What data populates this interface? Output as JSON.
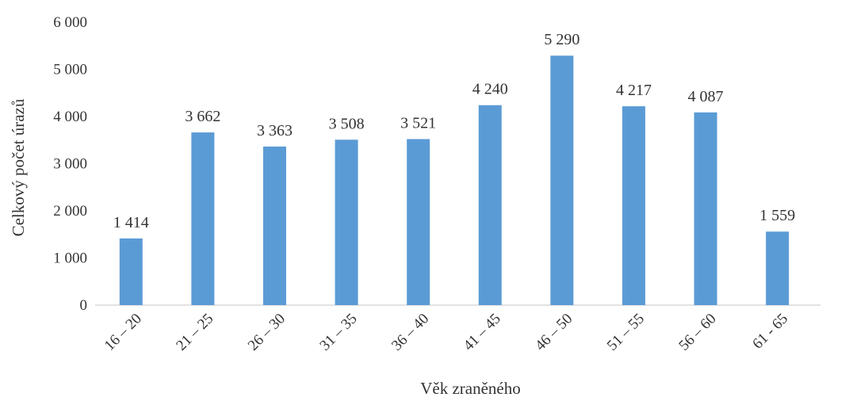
{
  "chart_data": {
    "type": "bar",
    "title": "",
    "xlabel": "Věk zraněného",
    "ylabel": "Celkový počet úrazů",
    "categories": [
      "16 – 20",
      "21 – 25",
      "26 – 30",
      "31 – 35",
      "36 – 40",
      "41 – 45",
      "46 – 50",
      "51 – 55",
      "56 – 60",
      "61 - 65"
    ],
    "values": [
      1414,
      3662,
      3363,
      3508,
      3521,
      4240,
      5290,
      4217,
      4087,
      1559
    ],
    "data_labels": [
      "1 414",
      "3 662",
      "3 363",
      "3 508",
      "3 521",
      "4 240",
      "5 290",
      "4 217",
      "4 087",
      "1 559"
    ],
    "ylim": [
      0,
      6000
    ],
    "yticks": [
      0,
      1000,
      2000,
      3000,
      4000,
      5000,
      6000
    ],
    "ytick_labels": [
      "0",
      "1 000",
      "2 000",
      "3 000",
      "4 000",
      "5 000",
      "6 000"
    ],
    "grid": false,
    "legend": "none",
    "colors": {
      "bar": "#5b9bd5",
      "axis": "#d9d9d9",
      "text": "#333333"
    }
  }
}
